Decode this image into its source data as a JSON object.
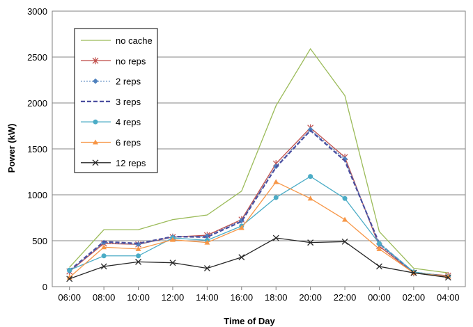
{
  "chart_data": {
    "type": "line",
    "title": "",
    "xlabel": "Time of Day",
    "ylabel": "Power (kW)",
    "ylim": [
      0,
      3000
    ],
    "yticks": [
      "0",
      "500",
      "1000",
      "1500",
      "2000",
      "2500",
      "3000"
    ],
    "categories": [
      "06:00",
      "08:00",
      "10:00",
      "12:00",
      "14:00",
      "16:00",
      "18:00",
      "20:00",
      "22:00",
      "00:00",
      "02:00",
      "04:00"
    ],
    "grid": "horizontal",
    "legend_position": "top-left",
    "series": [
      {
        "name": "no cache",
        "color": "#9bbb59",
        "marker": "none",
        "dash": "solid",
        "values": [
          210,
          620,
          620,
          730,
          780,
          1040,
          1970,
          2590,
          2080,
          600,
          200,
          150
        ]
      },
      {
        "name": "no reps",
        "color": "#c0504d",
        "marker": "star",
        "dash": "solid",
        "values": [
          165,
          470,
          460,
          540,
          560,
          730,
          1340,
          1730,
          1410,
          440,
          150,
          120
        ]
      },
      {
        "name": "2 reps",
        "color": "#4f81bd",
        "marker": "diamond",
        "dash": "dotted",
        "values": [
          170,
          480,
          460,
          540,
          550,
          720,
          1310,
          1710,
          1390,
          460,
          150,
          110
        ]
      },
      {
        "name": "3 reps",
        "color": "#4b4fa0",
        "marker": "none",
        "dash": "dashed",
        "values": [
          175,
          490,
          470,
          545,
          540,
          710,
          1300,
          1700,
          1370,
          470,
          155,
          110
        ]
      },
      {
        "name": "4 reps",
        "color": "#4bacc6",
        "marker": "circle",
        "dash": "solid",
        "values": [
          180,
          335,
          335,
          530,
          505,
          660,
          970,
          1200,
          960,
          470,
          160,
          110
        ]
      },
      {
        "name": "6 reps",
        "color": "#f79646",
        "marker": "triangle",
        "dash": "solid",
        "values": [
          100,
          430,
          410,
          510,
          480,
          640,
          1140,
          960,
          730,
          410,
          150,
          110
        ]
      },
      {
        "name": "12 reps",
        "color": "#262626",
        "marker": "x",
        "dash": "solid",
        "values": [
          85,
          220,
          270,
          260,
          200,
          320,
          530,
          480,
          490,
          220,
          150,
          100
        ]
      }
    ]
  }
}
